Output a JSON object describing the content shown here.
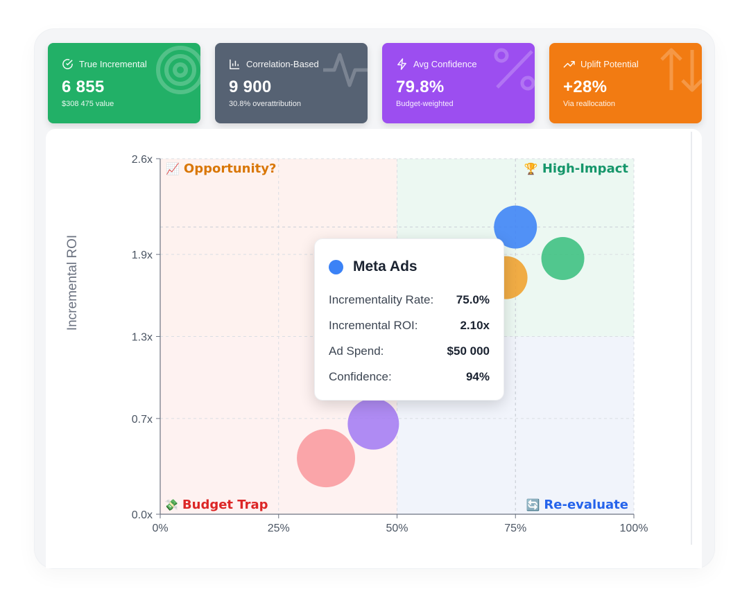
{
  "kpi_cards": [
    {
      "title": "True Incremental",
      "value": "6 855",
      "sub": "$308 475 value",
      "icon": "check-circle-icon",
      "bg_icon": "target-icon",
      "color": "#22b067"
    },
    {
      "title": "Correlation-Based",
      "value": "9 900",
      "sub": "30.8% overattribution",
      "icon": "bar-chart-icon",
      "bg_icon": "pulse-icon",
      "color": "#566273"
    },
    {
      "title": "Avg Confidence",
      "value": "79.8%",
      "sub": "Budget-weighted",
      "icon": "lightning-icon",
      "bg_icon": "percent-icon",
      "color": "#9c4ef0"
    },
    {
      "title": "Uplift Potential",
      "value": "+28%",
      "sub": "Via reallocation",
      "icon": "trend-up-icon",
      "bg_icon": "arrows-up-down-icon",
      "color": "#f27b12"
    }
  ],
  "quadrants": {
    "top_left": {
      "emoji": "📈",
      "label": "Opportunity?",
      "color": "#d97706",
      "fill": "#fef3ec"
    },
    "top_right": {
      "emoji": "🏆",
      "label": "High-Impact",
      "color": "#15966a",
      "fill": "#ecf8f2"
    },
    "bottom_left": {
      "emoji": "💸",
      "label": "Budget Trap",
      "color": "#dc2626",
      "fill": "#fef2f1"
    },
    "bottom_right": {
      "emoji": "🔄",
      "label": "Re-evaluate",
      "color": "#2563eb",
      "fill": "#f1f4fb"
    }
  },
  "tooltip": {
    "title": "Meta Ads",
    "dot_color": "#3b82f6",
    "rows": [
      {
        "label": "Incrementality Rate:",
        "value": "75.0%"
      },
      {
        "label": "Incremental ROI:",
        "value": "2.10x"
      },
      {
        "label": "Ad Spend:",
        "value": "$50 000"
      },
      {
        "label": "Confidence:",
        "value": "94%"
      }
    ]
  },
  "chart_data": {
    "type": "scatter",
    "xlabel": "",
    "ylabel": "Incremental ROI",
    "xlim": [
      0,
      100
    ],
    "ylim": [
      0,
      2.6
    ],
    "x_ticks": [
      0,
      25,
      50,
      75,
      100
    ],
    "x_tick_labels": [
      "0%",
      "25%",
      "50%",
      "75%",
      "100%"
    ],
    "y_ticks": [
      0,
      0.7,
      1.3,
      1.9,
      2.6
    ],
    "y_tick_labels": [
      "0.0x",
      "0.7x",
      "1.3x",
      "1.9x",
      "2.6x"
    ],
    "thresholds": {
      "x": 75,
      "y": 2.1
    },
    "points": [
      {
        "name": "Meta Ads",
        "x": 75,
        "y": 2.1,
        "spend": 50000,
        "color": "#3b82f6"
      },
      {
        "x": 85,
        "y": 1.87,
        "color": "#3bbf80"
      },
      {
        "x": 73,
        "y": 1.73,
        "color": "#f0a02c"
      },
      {
        "x": 45,
        "y": 0.66,
        "color": "#a47cf3"
      },
      {
        "x": 35,
        "y": 0.41,
        "color": "#f99a9e"
      }
    ]
  }
}
